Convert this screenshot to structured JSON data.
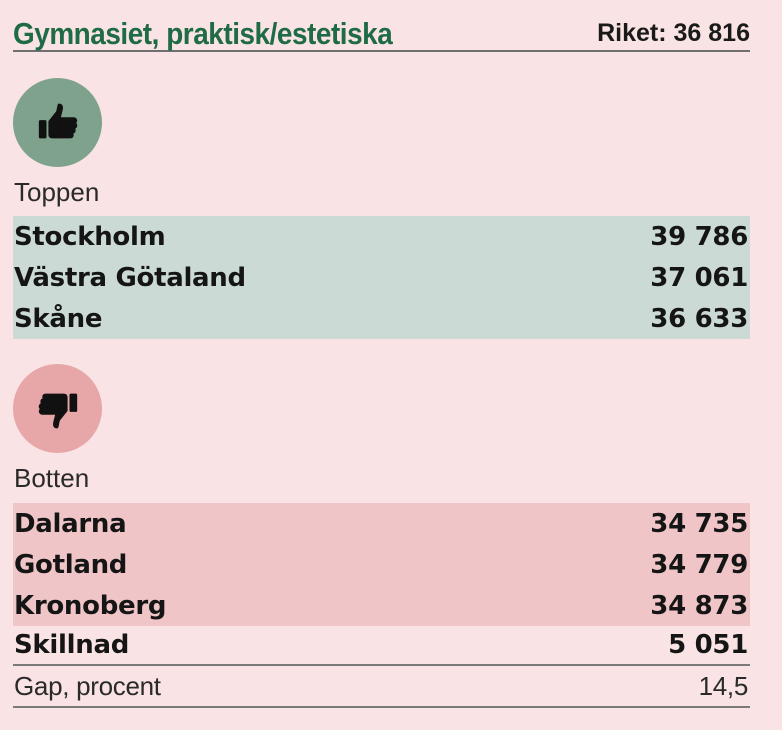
{
  "header": {
    "title": "Gymnasiet, praktisk/estetiska",
    "total": "Riket: 36 816"
  },
  "top": {
    "icon": "thumbs-up-icon",
    "label": "Toppen",
    "color": "#cbdad4",
    "badge_color": "#7fa28c",
    "rows": [
      {
        "name": "Stockholm",
        "value": "39 786"
      },
      {
        "name": "Västra Götaland",
        "value": "37 061"
      },
      {
        "name": "Skåne",
        "value": "36 633"
      }
    ]
  },
  "bottom": {
    "icon": "thumbs-down-icon",
    "label": "Botten",
    "color": "#efc5c7",
    "badge_color": "#e7a6a8",
    "rows": [
      {
        "name": "Dalarna",
        "value": "34 735"
      },
      {
        "name": "Gotland",
        "value": "34 779"
      },
      {
        "name": "Kronoberg",
        "value": "34 873"
      }
    ]
  },
  "summary": {
    "diff_label": "Skillnad",
    "diff_value": "5 051",
    "gap_label": "Gap, procent",
    "gap_value": "14,5"
  },
  "colors": {
    "title": "#1e6b45",
    "background": "#f9e3e4"
  }
}
